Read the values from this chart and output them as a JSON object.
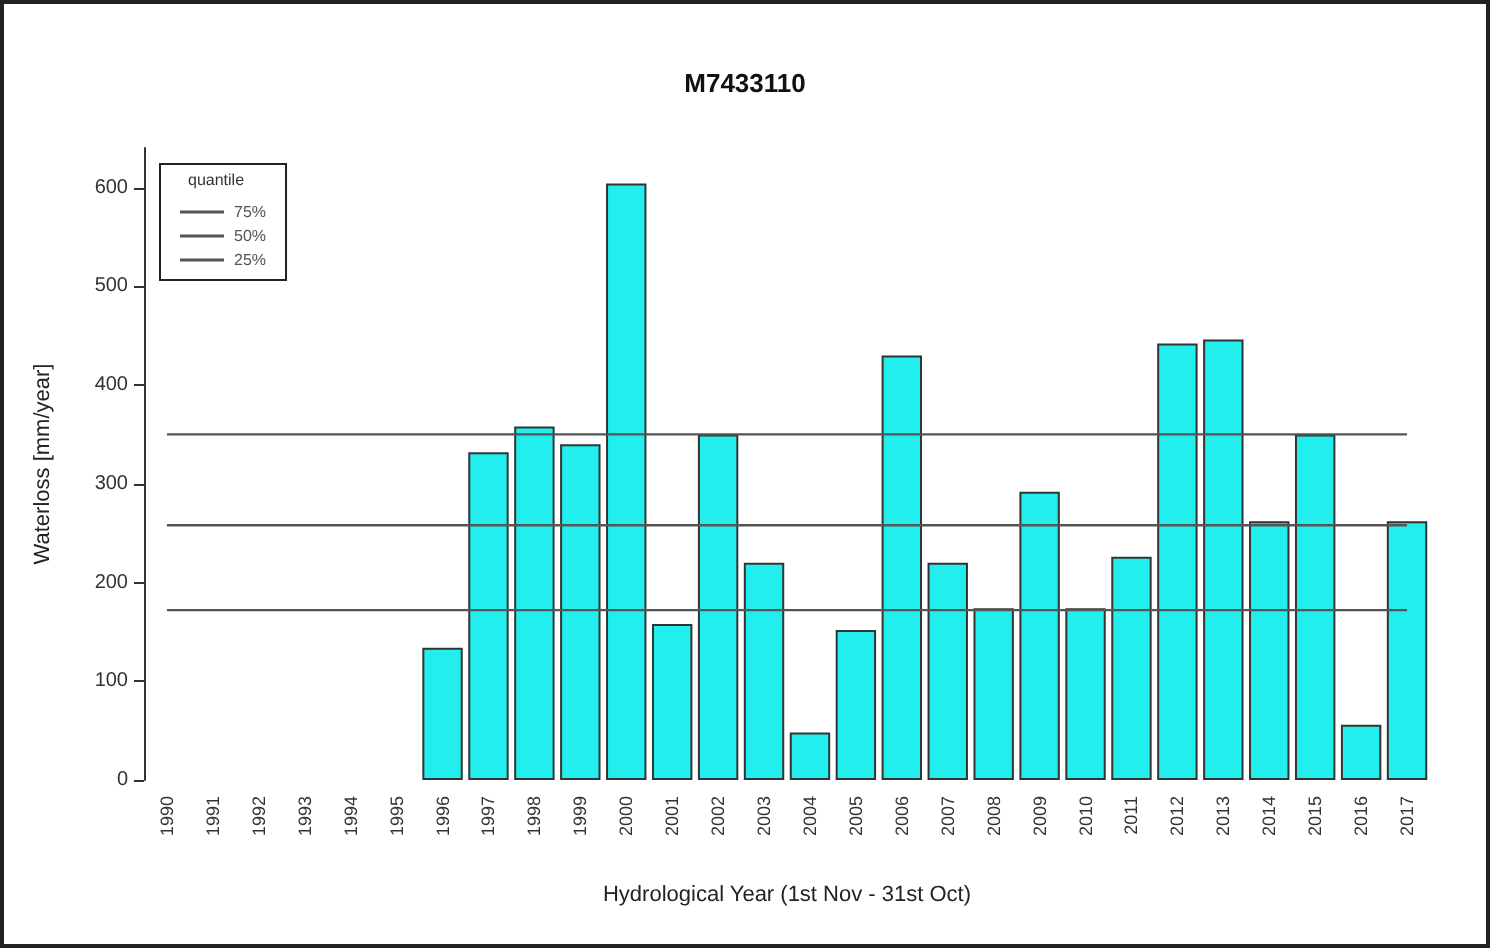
{
  "chart_data": {
    "type": "bar",
    "title": "M7433110",
    "xlabel": "Hydrological Year (1st Nov - 31st Oct)",
    "ylabel": "Waterloss [mm/year]",
    "categories": [
      "1990",
      "1991",
      "1992",
      "1993",
      "1994",
      "1995",
      "1996",
      "1997",
      "1998",
      "1999",
      "2000",
      "2001",
      "2002",
      "2003",
      "2004",
      "2005",
      "2006",
      "2007",
      "2008",
      "2009",
      "2010",
      "2011",
      "2012",
      "2013",
      "2014",
      "2015",
      "2016",
      "2017"
    ],
    "series": [
      {
        "color": "#22eeee",
        "values": [
          null,
          null,
          null,
          null,
          null,
          null,
          134,
          332,
          358,
          340,
          604,
          158,
          350,
          220,
          48,
          152,
          430,
          220,
          174,
          292,
          174,
          226,
          442,
          446,
          262,
          350,
          56,
          262
        ]
      },
      {
        "type": "line",
        "name": "75%",
        "color": "#555555",
        "values": [
          350,
          350,
          350,
          350,
          350,
          350,
          350,
          350,
          350,
          350,
          350,
          350,
          350,
          350,
          350,
          350,
          350,
          350,
          350,
          350,
          350,
          350,
          350,
          350,
          350,
          350,
          350,
          350
        ]
      },
      {
        "type": "line",
        "name": "50%",
        "color": "#555555",
        "values": [
          258,
          258,
          258,
          258,
          258,
          258,
          258,
          258,
          258,
          258,
          258,
          258,
          258,
          258,
          258,
          258,
          258,
          258,
          258,
          258,
          258,
          258,
          258,
          258,
          258,
          258,
          258,
          258
        ]
      },
      {
        "type": "line",
        "name": "25%",
        "color": "#555555",
        "values": [
          172,
          172,
          172,
          172,
          172,
          172,
          172,
          172,
          172,
          172,
          172,
          172,
          172,
          172,
          172,
          172,
          172,
          172,
          172,
          172,
          172,
          172,
          172,
          172,
          172,
          172,
          172,
          172
        ]
      }
    ],
    "ylim": [
      0,
      640
    ],
    "yticks": [
      0,
      100,
      200,
      300,
      400,
      500,
      600
    ],
    "marker": "none",
    "line_style": "solid",
    "legend_title": "quantile",
    "legend": "top left",
    "grid": false
  }
}
